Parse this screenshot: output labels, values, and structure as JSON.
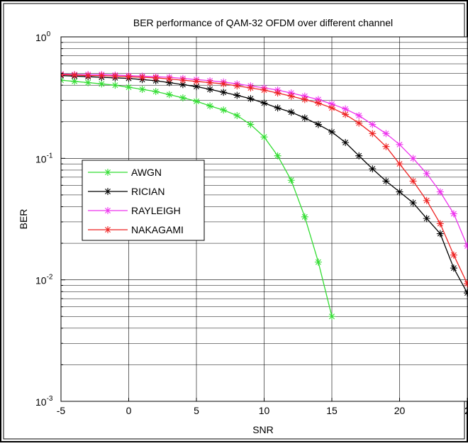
{
  "chart_data": {
    "type": "line",
    "title": "BER performance of QAM-32 OFDM over different channel",
    "xlabel": "SNR",
    "ylabel": "BER",
    "xlim": [
      -5,
      25
    ],
    "ylim": [
      0.001,
      1
    ],
    "yscale": "log",
    "grid": true,
    "x_ticks": [
      "-5",
      "0",
      "5",
      "10",
      "15",
      "20",
      "2"
    ],
    "y_ticks": [
      {
        "base": "10",
        "exp": "0",
        "value": 1
      },
      {
        "base": "10",
        "exp": "-1",
        "value": 0.1
      },
      {
        "base": "10",
        "exp": "-2",
        "value": 0.01
      },
      {
        "base": "10",
        "exp": "-3",
        "value": 0.001
      }
    ],
    "legend_position": "middle-left",
    "series": [
      {
        "name": "AWGN",
        "color": "#33dd33",
        "x": [
          -5,
          -4,
          -3,
          -2,
          -1,
          0,
          1,
          2,
          3,
          4,
          5,
          6,
          7,
          8,
          9,
          10,
          11,
          12,
          13,
          14,
          15
        ],
        "y": [
          0.44,
          0.43,
          0.42,
          0.41,
          0.4,
          0.385,
          0.37,
          0.355,
          0.335,
          0.315,
          0.295,
          0.27,
          0.25,
          0.225,
          0.19,
          0.15,
          0.105,
          0.066,
          0.033,
          0.014,
          0.005
        ]
      },
      {
        "name": "RICIAN",
        "color": "#000000",
        "x": [
          -5,
          -4,
          -3,
          -2,
          -1,
          0,
          1,
          2,
          3,
          4,
          5,
          6,
          7,
          8,
          9,
          10,
          11,
          12,
          13,
          14,
          15,
          16,
          17,
          18,
          19,
          20,
          21,
          22,
          23,
          24,
          25
        ],
        "y": [
          0.48,
          0.475,
          0.47,
          0.465,
          0.46,
          0.455,
          0.445,
          0.435,
          0.42,
          0.405,
          0.39,
          0.37,
          0.35,
          0.33,
          0.31,
          0.285,
          0.26,
          0.24,
          0.215,
          0.19,
          0.165,
          0.135,
          0.105,
          0.082,
          0.065,
          0.053,
          0.043,
          0.032,
          0.024,
          0.0125,
          0.0078
        ]
      },
      {
        "name": "RAYLEIGH",
        "color": "#ee33ee",
        "x": [
          -5,
          -4,
          -3,
          -2,
          -1,
          0,
          1,
          2,
          3,
          4,
          5,
          6,
          7,
          8,
          9,
          10,
          11,
          12,
          13,
          14,
          15,
          16,
          17,
          18,
          19,
          20,
          21,
          22,
          23,
          24,
          25
        ],
        "y": [
          0.495,
          0.49,
          0.49,
          0.49,
          0.485,
          0.48,
          0.475,
          0.47,
          0.465,
          0.455,
          0.445,
          0.435,
          0.425,
          0.41,
          0.395,
          0.38,
          0.365,
          0.345,
          0.325,
          0.305,
          0.28,
          0.255,
          0.225,
          0.19,
          0.16,
          0.13,
          0.1,
          0.075,
          0.053,
          0.035,
          0.019
        ]
      },
      {
        "name": "NAKAGAMI",
        "color": "#ee2222",
        "x": [
          -5,
          -4,
          -3,
          -2,
          -1,
          0,
          1,
          2,
          3,
          4,
          5,
          6,
          7,
          8,
          9,
          10,
          11,
          12,
          13,
          14,
          15,
          16,
          17,
          18,
          19,
          20,
          21,
          22,
          23,
          24,
          25
        ],
        "y": [
          0.49,
          0.485,
          0.48,
          0.48,
          0.475,
          0.47,
          0.465,
          0.46,
          0.45,
          0.44,
          0.43,
          0.42,
          0.41,
          0.395,
          0.38,
          0.365,
          0.345,
          0.325,
          0.305,
          0.285,
          0.26,
          0.23,
          0.195,
          0.16,
          0.125,
          0.09,
          0.065,
          0.045,
          0.029,
          0.016,
          0.0093
        ]
      }
    ]
  }
}
